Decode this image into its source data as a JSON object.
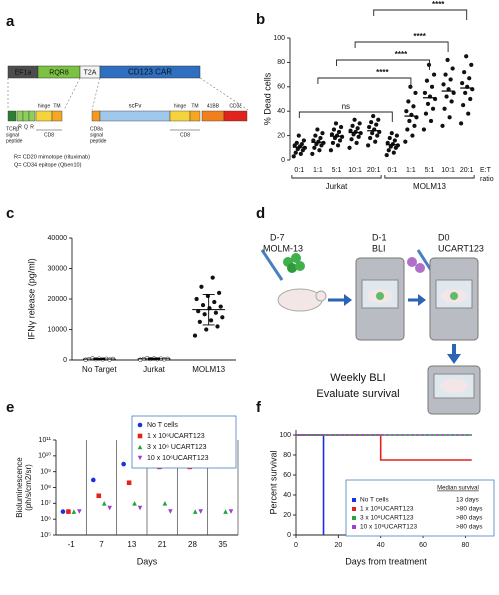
{
  "panel_labels": [
    "a",
    "b",
    "c",
    "d",
    "e",
    "f"
  ],
  "diagram_a": {
    "top": [
      "EF1a",
      "RQR8",
      "T2A",
      "CD123 CAR"
    ],
    "bottom": [
      "R",
      "Q",
      "R",
      "hinge",
      "TM",
      "scFv",
      "hinge",
      "TM",
      "41BB",
      "CD3ζ"
    ],
    "tcr_label": [
      "TCRβ",
      "signal",
      "peptide"
    ],
    "cd8a_label": [
      "CD8a",
      "signal",
      "peptide"
    ],
    "cd8_labels": [
      "CD8",
      "CD8"
    ],
    "notes": [
      "R= CD20 mimotope (rituximab)",
      "Q= CD34 epitope (Qben10)"
    ]
  },
  "diagram_d": {
    "steps": [
      {
        "day": "D-7",
        "label": "MOLM-13"
      },
      {
        "day": "D-1",
        "label": "BLI"
      },
      {
        "day": "D0",
        "label": "UCART123"
      }
    ],
    "footer": [
      "Weekly BLI",
      "Evaluate survival"
    ]
  },
  "chart_data": [
    {
      "type": "dot",
      "y_label": "% Dead cells",
      "categories": [
        "0:1",
        "1:1",
        "5:1",
        "10:1",
        "20:1",
        "0:1",
        "1:1",
        "5:1",
        "10:1",
        "20:1"
      ],
      "groups": [
        "Jurkat",
        "MOLM13"
      ],
      "x_label_lines": [
        "E:T",
        "ratio"
      ],
      "points": [
        [
          3,
          5,
          6,
          8,
          9,
          10,
          11,
          12,
          13,
          14,
          16,
          20
        ],
        [
          5,
          8,
          10,
          12,
          13,
          14,
          15,
          16,
          18,
          20,
          22,
          25
        ],
        [
          8,
          12,
          14,
          16,
          18,
          19,
          20,
          21,
          23,
          25,
          27,
          30
        ],
        [
          10,
          14,
          17,
          19,
          21,
          22,
          23,
          24,
          26,
          28,
          30,
          33
        ],
        [
          12,
          15,
          18,
          20,
          22,
          23,
          25,
          27,
          29,
          31,
          33,
          36
        ],
        [
          4,
          6,
          8,
          10,
          11,
          12,
          13,
          14,
          16,
          18,
          20,
          22
        ],
        [
          15,
          20,
          25,
          28,
          32,
          35,
          37,
          40,
          44,
          48,
          55,
          60
        ],
        [
          25,
          32,
          38,
          42,
          46,
          50,
          52,
          55,
          60,
          65,
          70,
          78
        ],
        [
          28,
          35,
          42,
          48,
          52,
          55,
          58,
          62,
          66,
          70,
          75,
          82
        ],
        [
          30,
          38,
          45,
          50,
          55,
          58,
          60,
          63,
          67,
          72,
          78,
          85
        ]
      ],
      "medians": [
        10.5,
        14.5,
        19.5,
        22.5,
        24,
        12.5,
        36,
        51,
        56.5,
        59
      ],
      "annotations": [
        "ns",
        "****",
        "****",
        "****",
        "****"
      ],
      "color": "#111111",
      "ylim": [
        0,
        100
      ],
      "yticks": [
        0,
        20,
        40,
        60,
        80,
        100
      ]
    },
    {
      "type": "dot",
      "y_label": "IFNγ release (pg/ml)",
      "categories": [
        "No Target",
        "Jurkat",
        "MOLM13"
      ],
      "points": [
        [
          100,
          150,
          200,
          250,
          300,
          350,
          400,
          450,
          500
        ],
        [
          100,
          200,
          250,
          300,
          350,
          400,
          450,
          500,
          600
        ],
        [
          8000,
          10000,
          11000,
          12500,
          13000,
          14000,
          15000,
          15500,
          16000,
          17000,
          17500,
          18000,
          19000,
          20000,
          21000,
          22000,
          24000,
          27000
        ]
      ],
      "means": [
        300,
        350,
        16500
      ],
      "errors": [
        200,
        250,
        5000
      ],
      "color": "#111111",
      "ylim": [
        0,
        40000
      ],
      "yticks": [
        0,
        10000,
        20000,
        30000,
        40000
      ]
    },
    {
      "type": "scatter",
      "log": true,
      "y_label_lines": [
        "Bioluminescence",
        "(ph/s/cm2/sr)"
      ],
      "x_label": "Days",
      "categories": [
        "-1",
        "7",
        "13",
        "21",
        "28",
        "35"
      ],
      "series": [
        {
          "name": "No T cells",
          "color": "#1f2ee0",
          "marker": "circle",
          "values": [
            3000000,
            300000000,
            3000000000,
            null,
            null,
            null
          ]
        },
        {
          "name": "1 x 10⁶UCART123",
          "color": "#e3231b",
          "marker": "square",
          "values": [
            3000000,
            30000000,
            200000000,
            2000000000,
            2000000000,
            null
          ]
        },
        {
          "name": "3 x 10⁶ UCART123",
          "color": "#1fa63a",
          "marker": "triangle",
          "values": [
            3000000,
            10000000,
            10000000,
            10000000,
            3000000,
            3000000
          ]
        },
        {
          "name": "10 x 10⁶UCART123",
          "color": "#a13fd0",
          "marker": "triangle-down",
          "values": [
            3000000,
            5000000,
            5000000,
            3000000,
            3000000,
            3000000
          ]
        }
      ],
      "ylim": [
        100000,
        100000000000
      ],
      "yticks": [
        {
          "value": 100000,
          "label": "10⁵"
        },
        {
          "value": 1000000,
          "label": "10⁶"
        },
        {
          "value": 10000000,
          "label": "10⁷"
        },
        {
          "value": 100000000,
          "label": "10⁸"
        },
        {
          "value": 1000000000,
          "label": "10⁹"
        },
        {
          "value": 10000000000,
          "label": "10¹⁰"
        },
        {
          "value": 100000000000,
          "label": "10¹¹"
        }
      ]
    },
    {
      "type": "step",
      "y_label": "Percent survival",
      "x_label": "Days from treatment",
      "legend_title": "Median survival",
      "series": [
        {
          "name": "No T cells",
          "color": "#1f2ee0",
          "median": "13 days",
          "x": [
            0,
            13,
            13
          ],
          "values": [
            100,
            100,
            0
          ]
        },
        {
          "name": "1 x 10⁶UCART123",
          "color": "#e3231b",
          "median": ">80 days",
          "x": [
            0,
            40,
            40,
            83
          ],
          "values": [
            100,
            100,
            75,
            75
          ]
        },
        {
          "name": "3 x 10⁶UCART123",
          "color": "#1fa63a",
          "median": ">80 days",
          "x": [
            0,
            83
          ],
          "values": [
            100,
            100
          ]
        },
        {
          "name": "10 x 10⁶UCART123",
          "color": "#a13fd0",
          "median": ">80 days",
          "x": [
            0,
            83
          ],
          "values": [
            100,
            100
          ]
        }
      ],
      "xlim": [
        0,
        85
      ],
      "xticks": [
        0,
        20,
        40,
        60,
        80
      ],
      "ylim": [
        0,
        105
      ],
      "yticks": [
        0,
        20,
        40,
        60,
        80,
        100
      ]
    }
  ]
}
